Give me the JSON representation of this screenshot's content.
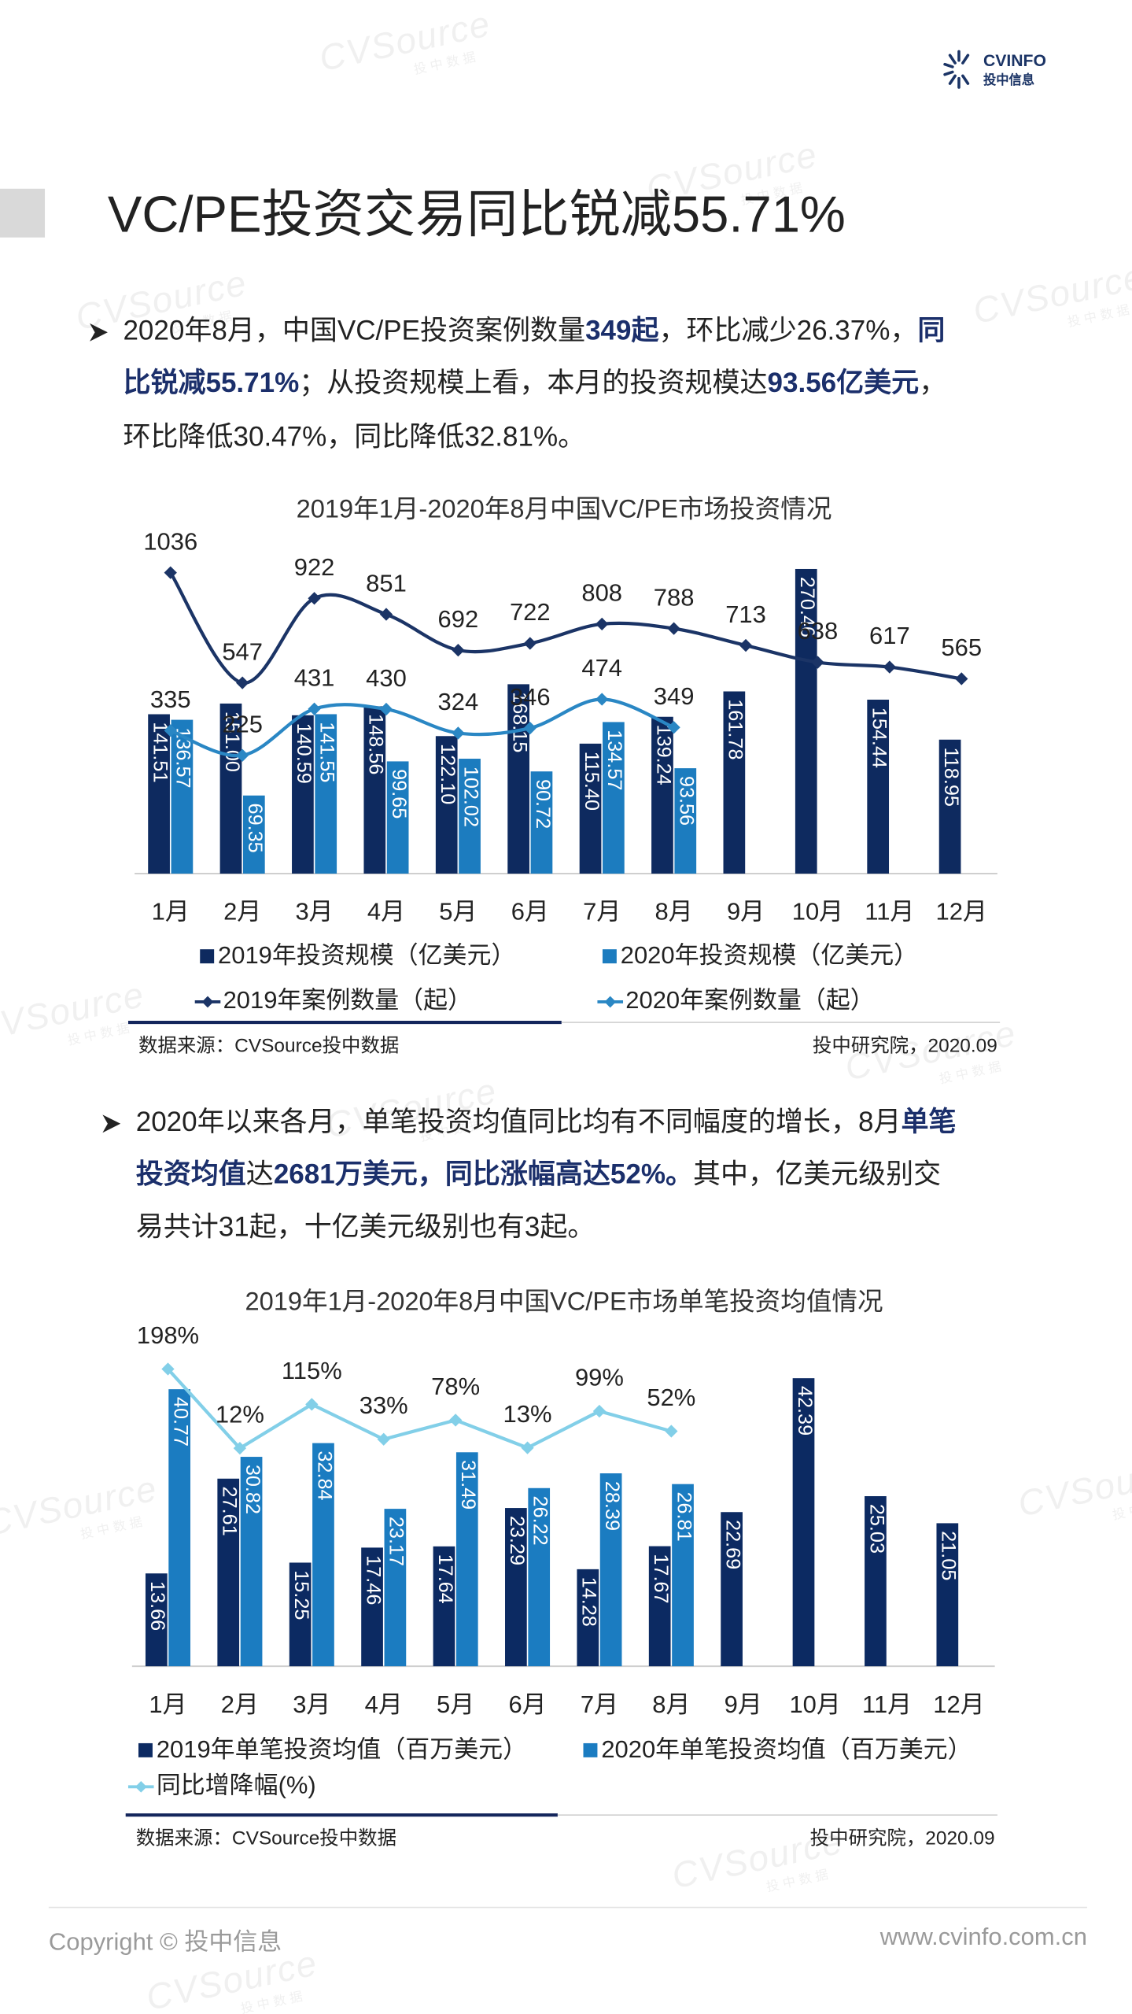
{
  "header": {
    "logo_text": "CVINFO",
    "logo_subtext": "投中信息"
  },
  "watermark": [
    "CVSource",
    "投中数据"
  ],
  "title": "VC/PE投资交易同比锐减55.71%",
  "paragraphs": [
    [
      [
        {
          "text": "2020年8月，中国VC/PE投资案例数量",
          "bold": false
        },
        {
          "text": "349起",
          "bold": true
        },
        {
          "text": "，环比减少26.37%，",
          "bold": false
        },
        {
          "text": "同",
          "bold": true
        }
      ],
      [
        {
          "text": "比锐减55.71%",
          "bold": true
        },
        {
          "text": "；从投资规模上看，本月的投资规模达",
          "bold": false
        },
        {
          "text": "93.56亿美元",
          "bold": true
        },
        {
          "text": "，",
          "bold": false
        }
      ],
      [
        {
          "text": "环比降低30.47%，同比降低32.81%。",
          "bold": false
        }
      ]
    ],
    [
      [
        {
          "text": "2020年以来各月，单笔投资均值同比均有不同幅度的增长，8月",
          "bold": false
        },
        {
          "text": "单笔",
          "bold": true
        }
      ],
      [
        {
          "text": "投资均值",
          "bold": true
        },
        {
          "text": "达",
          "bold": false
        },
        {
          "text": "2681万美元",
          "bold": true
        },
        {
          "text": "，同比涨幅高达52%。",
          "bold": true
        },
        {
          "text": "其中，亿美元级别交",
          "bold": false
        }
      ],
      [
        {
          "text": "易共计31起，十亿美元级别也有3起。",
          "bold": false
        }
      ]
    ]
  ],
  "chart_data": [
    {
      "type": "combo",
      "title": "2019年1月-2020年8月中国VC/PE市场投资情况",
      "categories": [
        "1月",
        "2月",
        "3月",
        "4月",
        "5月",
        "6月",
        "7月",
        "8月",
        "9月",
        "10月",
        "11月",
        "12月"
      ],
      "ylim": [
        0,
        320
      ],
      "y2lim": [
        -300,
        1300
      ],
      "smooth": true,
      "series": [
        {
          "name": "2019年投资规模（亿美元）",
          "kind": "bar",
          "color": "#0e2a5f",
          "values": [
            141.51,
            151.0,
            140.59,
            148.56,
            122.1,
            168.15,
            115.4,
            139.24,
            161.78,
            270.46,
            154.44,
            118.95
          ],
          "value_labels": [
            "141.51",
            "151.00",
            "140.59",
            "148.56",
            "122.10",
            "168.15",
            "115.40",
            "139.24",
            "161.78",
            "270.46",
            "154.44",
            "118.95"
          ]
        },
        {
          "name": "2020年投资规模（亿美元）",
          "kind": "bar",
          "color": "#1c7cbf",
          "values": [
            136.57,
            69.35,
            141.55,
            99.65,
            102.02,
            90.72,
            134.57,
            93.56,
            null,
            null,
            null,
            null
          ],
          "value_labels": [
            "136.57",
            "69.35",
            "141.55",
            "99.65",
            "102.02",
            "90.72",
            "134.57",
            "93.56",
            null,
            null,
            null,
            null
          ]
        },
        {
          "name": "2019年案例数量（起）",
          "kind": "line",
          "axis": "y2",
          "color": "#1b3466",
          "values": [
            1036,
            547,
            922,
            851,
            692,
            722,
            808,
            788,
            713,
            638,
            617,
            565
          ]
        },
        {
          "name": "2020年案例数量（起）",
          "kind": "line",
          "axis": "y2",
          "color": "#2a87c4",
          "values": [
            335,
            225,
            431,
            430,
            324,
            346,
            474,
            349,
            null,
            null,
            null,
            null
          ]
        }
      ],
      "source": "数据来源：CVSource投中数据",
      "publisher": "投中研究院，2020.09"
    },
    {
      "type": "combo",
      "title": "2019年1月-2020年8月中国VC/PE市场单笔投资均值情况",
      "categories": [
        "1月",
        "2月",
        "3月",
        "4月",
        "5月",
        "6月",
        "7月",
        "8月",
        "9月",
        "10月",
        "11月",
        "12月"
      ],
      "ylim": [
        0,
        47
      ],
      "y2lim": [
        -500,
        250
      ],
      "smooth": false,
      "series": [
        {
          "name": "2019年单笔投资均值（百万美元）",
          "kind": "bar",
          "color": "#0c2a62",
          "values": [
            13.66,
            27.61,
            15.25,
            17.46,
            17.64,
            23.29,
            14.28,
            17.67,
            22.69,
            42.39,
            25.03,
            21.05
          ]
        },
        {
          "name": "2020年单笔投资均值（百万美元）",
          "kind": "bar",
          "color": "#1b7cc1",
          "values": [
            40.77,
            30.82,
            32.84,
            23.17,
            31.49,
            26.22,
            28.39,
            26.81,
            null,
            null,
            null,
            null
          ]
        },
        {
          "name": "同比增降幅(%)",
          "kind": "line",
          "axis": "y2",
          "color": "#82cfe8",
          "values": [
            198,
            12,
            115,
            33,
            78,
            13,
            99,
            52,
            null,
            null,
            null,
            null
          ],
          "value_labels": [
            "198%",
            "12%",
            "115%",
            "33%",
            "78%",
            "13%",
            "99%",
            "52%",
            null,
            null,
            null,
            null
          ]
        }
      ],
      "source": "数据来源：CVSource投中数据",
      "publisher": "投中研究院，2020.09"
    }
  ],
  "footer": {
    "copyright": "Copyright © 投中信息",
    "website": "www.cvinfo.com.cn"
  }
}
